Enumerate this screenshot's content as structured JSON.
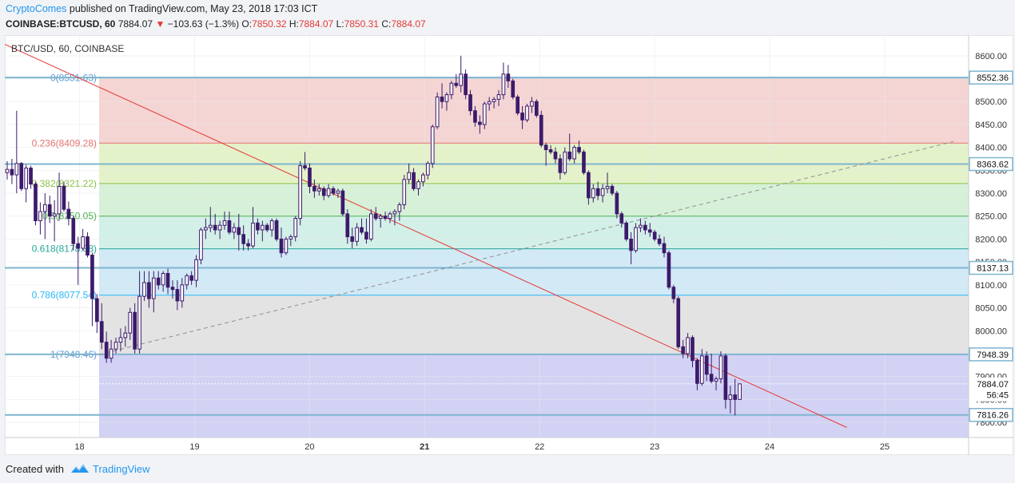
{
  "header": {
    "author": "CryptoComes",
    "published": "published on TradingView.com, May 23, 2018 17:03 ICT",
    "symbol": "COINBASE:BTCUSD, 60",
    "last": "7884.07",
    "change_arrow": "▼",
    "change": "−103.63 (−1.3%)",
    "o_label": "O:",
    "o_value": "7850.32",
    "h_label": "H:",
    "h_value": "7884.07",
    "l_label": "L:",
    "l_value": "7850.31",
    "c_label": "C:",
    "c_value": "7884.07"
  },
  "footer": {
    "created_with": "Created with",
    "brand": "TradingView"
  },
  "colors": {
    "bull": "#ffffff",
    "bear": "#3c1a6b",
    "wick": "#3c1a6b",
    "trend_red": "#e53935",
    "trend_dash": "#8f8f8f",
    "hline": "#7fb5cf",
    "fib_0": "#5b9bd5",
    "fib_236": "#e57373",
    "fib_382": "#8bc34a",
    "fib_5": "#4caf50",
    "fib_618": "#26a69a",
    "fib_786": "#29b6f6",
    "fib_1": "#5b9bd5"
  },
  "chart_data": {
    "type": "candlestick",
    "title": "BTC/USD, 60, COINBASE",
    "x_axis": {
      "ticks": [
        {
          "x": 18,
          "label": "18"
        },
        {
          "x": 19,
          "label": "19"
        },
        {
          "x": 20,
          "label": "20"
        },
        {
          "x": 21,
          "label": "21",
          "bold": true
        },
        {
          "x": 22,
          "label": "22"
        },
        {
          "x": 23,
          "label": "23"
        },
        {
          "x": 24,
          "label": "24"
        },
        {
          "x": 25,
          "label": "25"
        }
      ],
      "range": [
        17.35,
        25.73
      ]
    },
    "y_axis": {
      "range": [
        7767,
        8645
      ],
      "ticks": [
        8600,
        8550,
        8500,
        8450,
        8400,
        8350,
        8300,
        8250,
        8200,
        8150,
        8100,
        8050,
        8000,
        7950,
        7900,
        7850,
        7800
      ],
      "tick_labels": [
        "8600.00",
        "8550.00",
        "8500.00",
        "8450.00",
        "8400.00",
        "8350.00",
        "8300.00",
        "8250.00",
        "8200.00",
        "8150.00",
        "8100.00",
        "8050.00",
        "8000.00",
        "7950.00",
        "7900.00",
        "7850.00",
        "7800.00"
      ],
      "price_tags": [
        {
          "value": 8552.36,
          "label": "8552.36",
          "style": "box"
        },
        {
          "value": 8363.62,
          "label": "8363.62",
          "style": "box"
        },
        {
          "value": 8137.13,
          "label": "8137.13",
          "style": "box"
        },
        {
          "value": 7948.39,
          "label": "7948.39",
          "style": "box"
        },
        {
          "value": 7884.07,
          "label": "7884.07",
          "style": "plain"
        },
        {
          "value": 7860,
          "label": "56:45",
          "style": "plain"
        },
        {
          "value": 7816.26,
          "label": "7816.26",
          "style": "box"
        }
      ]
    },
    "fib": {
      "x_start": 18.17,
      "levels": [
        {
          "ratio": 0,
          "value": 8551.63,
          "label": "0(8551.63)",
          "color": "#5b9bd5",
          "fill": "#f4d5d3"
        },
        {
          "ratio": 0.236,
          "value": 8409.28,
          "label": "0.236(8409.28)",
          "color": "#e57373",
          "fill": "#e4f2c9"
        },
        {
          "ratio": 0.382,
          "value": 8321.22,
          "label": "0.382(8321.22)",
          "color": "#8bc34a",
          "fill": "#d6f1d8"
        },
        {
          "ratio": 0.5,
          "value": 8250.05,
          "label": "0.5(8250.05)",
          "color": "#4caf50",
          "fill": "#d3f0e8"
        },
        {
          "ratio": 0.618,
          "value": 8178.88,
          "label": "0.618(8178.88)",
          "color": "#26a69a",
          "fill": "#d2e9f6"
        },
        {
          "ratio": 0.786,
          "value": 8077.54,
          "label": "0.786(8077.54)",
          "color": "#29b6f6",
          "fill": "#e3e3e3"
        },
        {
          "ratio": 1,
          "value": 7948.46,
          "label": "1(7948.46)",
          "color": "#5b9bd5",
          "fill": "#d2d2f4"
        }
      ],
      "fill_bottom": 7767
    },
    "horizontal_lines": [
      8552.36,
      8363.62,
      8137.13,
      7948.39,
      7816.26
    ],
    "trend_lines": [
      {
        "from": [
          17.35,
          8625
        ],
        "to": [
          24.67,
          7789
        ],
        "color": "#e53935",
        "dashed": false
      },
      {
        "from": [
          18.17,
          7948
        ],
        "to": [
          25.6,
          8413
        ],
        "color": "#8f8f8f",
        "dashed": true
      }
    ],
    "current_price_line": 7884.07,
    "candles": [
      [
        8345,
        8370,
        8330,
        8352
      ],
      [
        8352,
        8375,
        8320,
        8340
      ],
      [
        8340,
        8480,
        8300,
        8365
      ],
      [
        8365,
        8368,
        8305,
        8310
      ],
      [
        8310,
        8362,
        8280,
        8355
      ],
      [
        8355,
        8360,
        8310,
        8320
      ],
      [
        8320,
        8325,
        8230,
        8240
      ],
      [
        8240,
        8280,
        8210,
        8260
      ],
      [
        8260,
        8300,
        8200,
        8275
      ],
      [
        8275,
        8295,
        8235,
        8250
      ],
      [
        8250,
        8285,
        8195,
        8255
      ],
      [
        8255,
        8345,
        8240,
        8315
      ],
      [
        8315,
        8325,
        8260,
        8265
      ],
      [
        8265,
        8282,
        8230,
        8245
      ],
      [
        8245,
        8250,
        8175,
        8190
      ],
      [
        8190,
        8205,
        8100,
        8180
      ],
      [
        8180,
        8222,
        8175,
        8205
      ],
      [
        8205,
        8215,
        8160,
        8165
      ],
      [
        8165,
        8170,
        8010,
        8070
      ],
      [
        8070,
        8080,
        7995,
        8020
      ],
      [
        8020,
        8060,
        7960,
        7975
      ],
      [
        7975,
        7998,
        7930,
        7940
      ],
      [
        7940,
        7980,
        7930,
        7960
      ],
      [
        7960,
        7985,
        7950,
        7975
      ],
      [
        7975,
        8005,
        7955,
        7985
      ],
      [
        7985,
        8010,
        7965,
        7995
      ],
      [
        7995,
        8050,
        7980,
        8040
      ],
      [
        8040,
        8060,
        7950,
        7960
      ],
      [
        7960,
        8130,
        7950,
        8075
      ],
      [
        8075,
        8130,
        8065,
        8105
      ],
      [
        8105,
        8130,
        8050,
        8070
      ],
      [
        8070,
        8130,
        8040,
        8115
      ],
      [
        8115,
        8130,
        8090,
        8100
      ],
      [
        8100,
        8130,
        8085,
        8125
      ],
      [
        8125,
        8135,
        8080,
        8095
      ],
      [
        8095,
        8110,
        8070,
        8090
      ],
      [
        8090,
        8110,
        8045,
        8065
      ],
      [
        8065,
        8115,
        8050,
        8100
      ],
      [
        8100,
        8125,
        8090,
        8120
      ],
      [
        8120,
        8130,
        8100,
        8110
      ],
      [
        8110,
        8165,
        8095,
        8155
      ],
      [
        8155,
        8225,
        8145,
        8220
      ],
      [
        8220,
        8245,
        8200,
        8225
      ],
      [
        8225,
        8270,
        8215,
        8230
      ],
      [
        8230,
        8255,
        8210,
        8220
      ],
      [
        8220,
        8240,
        8200,
        8230
      ],
      [
        8230,
        8260,
        8220,
        8240
      ],
      [
        8240,
        8260,
        8210,
        8215
      ],
      [
        8215,
        8235,
        8200,
        8225
      ],
      [
        8225,
        8255,
        8175,
        8210
      ],
      [
        8210,
        8230,
        8175,
        8190
      ],
      [
        8190,
        8200,
        8175,
        8185
      ],
      [
        8185,
        8270,
        8180,
        8235
      ],
      [
        8235,
        8245,
        8210,
        8220
      ],
      [
        8220,
        8240,
        8195,
        8230
      ],
      [
        8230,
        8235,
        8215,
        8220
      ],
      [
        8220,
        8245,
        8205,
        8240
      ],
      [
        8240,
        8245,
        8195,
        8200
      ],
      [
        8200,
        8225,
        8160,
        8170
      ],
      [
        8170,
        8205,
        8165,
        8200
      ],
      [
        8200,
        8210,
        8185,
        8205
      ],
      [
        8205,
        8250,
        8195,
        8245
      ],
      [
        8245,
        8370,
        8230,
        8360
      ],
      [
        8360,
        8390,
        8350,
        8355
      ],
      [
        8355,
        8365,
        8300,
        8315
      ],
      [
        8315,
        8330,
        8290,
        8305
      ],
      [
        8305,
        8320,
        8295,
        8310
      ],
      [
        8310,
        8315,
        8285,
        8295
      ],
      [
        8295,
        8320,
        8290,
        8310
      ],
      [
        8310,
        8315,
        8295,
        8300
      ],
      [
        8300,
        8310,
        8290,
        8305
      ],
      [
        8305,
        8310,
        8250,
        8255
      ],
      [
        8255,
        8265,
        8190,
        8205
      ],
      [
        8205,
        8225,
        8180,
        8195
      ],
      [
        8195,
        8235,
        8185,
        8225
      ],
      [
        8225,
        8245,
        8210,
        8215
      ],
      [
        8215,
        8245,
        8190,
        8200
      ],
      [
        8200,
        8265,
        8195,
        8255
      ],
      [
        8255,
        8270,
        8240,
        8245
      ],
      [
        8245,
        8255,
        8225,
        8250
      ],
      [
        8250,
        8260,
        8240,
        8245
      ],
      [
        8245,
        8260,
        8235,
        8255
      ],
      [
        8255,
        8265,
        8230,
        8260
      ],
      [
        8260,
        8280,
        8240,
        8275
      ],
      [
        8275,
        8340,
        8265,
        8330
      ],
      [
        8330,
        8365,
        8320,
        8345
      ],
      [
        8345,
        8355,
        8305,
        8310
      ],
      [
        8310,
        8330,
        8295,
        8325
      ],
      [
        8325,
        8345,
        8315,
        8340
      ],
      [
        8340,
        8370,
        8330,
        8365
      ],
      [
        8365,
        8450,
        8355,
        8445
      ],
      [
        8445,
        8520,
        8440,
        8510
      ],
      [
        8510,
        8540,
        8485,
        8500
      ],
      [
        8500,
        8520,
        8480,
        8515
      ],
      [
        8515,
        8545,
        8505,
        8540
      ],
      [
        8540,
        8560,
        8530,
        8535
      ],
      [
        8535,
        8600,
        8520,
        8560
      ],
      [
        8560,
        8570,
        8505,
        8515
      ],
      [
        8515,
        8525,
        8470,
        8480
      ],
      [
        8480,
        8490,
        8445,
        8455
      ],
      [
        8455,
        8470,
        8430,
        8450
      ],
      [
        8450,
        8500,
        8440,
        8495
      ],
      [
        8495,
        8510,
        8480,
        8500
      ],
      [
        8500,
        8510,
        8485,
        8505
      ],
      [
        8505,
        8525,
        8490,
        8515
      ],
      [
        8515,
        8585,
        8505,
        8560
      ],
      [
        8560,
        8580,
        8530,
        8545
      ],
      [
        8545,
        8550,
        8505,
        8510
      ],
      [
        8510,
        8515,
        8470,
        8475
      ],
      [
        8475,
        8490,
        8440,
        8460
      ],
      [
        8460,
        8495,
        8455,
        8490
      ],
      [
        8490,
        8510,
        8475,
        8500
      ],
      [
        8500,
        8505,
        8465,
        8470
      ],
      [
        8470,
        8480,
        8400,
        8405
      ],
      [
        8405,
        8410,
        8360,
        8395
      ],
      [
        8395,
        8405,
        8385,
        8390
      ],
      [
        8390,
        8400,
        8365,
        8375
      ],
      [
        8375,
        8385,
        8330,
        8345
      ],
      [
        8345,
        8400,
        8340,
        8390
      ],
      [
        8390,
        8430,
        8370,
        8375
      ],
      [
        8375,
        8405,
        8365,
        8400
      ],
      [
        8400,
        8415,
        8385,
        8390
      ],
      [
        8390,
        8395,
        8340,
        8345
      ],
      [
        8345,
        8350,
        8275,
        8290
      ],
      [
        8290,
        8320,
        8280,
        8310
      ],
      [
        8310,
        8325,
        8285,
        8295
      ],
      [
        8295,
        8320,
        8280,
        8310
      ],
      [
        8310,
        8345,
        8300,
        8315
      ],
      [
        8315,
        8320,
        8295,
        8300
      ],
      [
        8300,
        8305,
        8245,
        8255
      ],
      [
        8255,
        8260,
        8225,
        8235
      ],
      [
        8235,
        8240,
        8195,
        8200
      ],
      [
        8200,
        8215,
        8145,
        8175
      ],
      [
        8175,
        8235,
        8170,
        8225
      ],
      [
        8225,
        8245,
        8215,
        8230
      ],
      [
        8230,
        8240,
        8210,
        8220
      ],
      [
        8220,
        8235,
        8205,
        8215
      ],
      [
        8215,
        8220,
        8195,
        8200
      ],
      [
        8200,
        8210,
        8185,
        8190
      ],
      [
        8190,
        8205,
        8160,
        8170
      ],
      [
        8170,
        8175,
        8090,
        8095
      ],
      [
        8095,
        8100,
        8060,
        8070
      ],
      [
        8070,
        8075,
        7960,
        7965
      ],
      [
        7965,
        7980,
        7940,
        7950
      ],
      [
        7950,
        7995,
        7940,
        7985
      ],
      [
        7985,
        7990,
        7920,
        7935
      ],
      [
        7935,
        7940,
        7870,
        7885
      ],
      [
        7885,
        7960,
        7880,
        7945
      ],
      [
        7945,
        7955,
        7890,
        7905
      ],
      [
        7905,
        7950,
        7885,
        7890
      ],
      [
        7890,
        7900,
        7870,
        7895
      ],
      [
        7895,
        7955,
        7885,
        7945
      ],
      [
        7945,
        7950,
        7830,
        7850
      ],
      [
        7850,
        7880,
        7820,
        7860
      ],
      [
        7860,
        7895,
        7815,
        7850
      ],
      [
        7850,
        7884.07,
        7850,
        7884.07
      ]
    ]
  }
}
